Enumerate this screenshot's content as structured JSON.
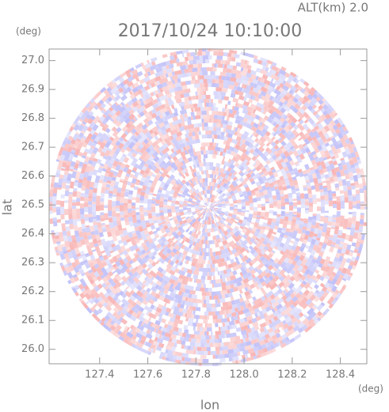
{
  "chart_data": {
    "type": "radar-field",
    "title": "2017/10/24 10:10:00",
    "subtitle": "ALT(km) 2.0",
    "x_label": "lon",
    "y_label": "lat",
    "x_unit": "(deg)",
    "y_unit": "(deg)",
    "xlim": [
      127.19,
      128.51
    ],
    "ylim": [
      25.95,
      27.04
    ],
    "xticks": [
      {
        "value": 127.4,
        "label": "127.4"
      },
      {
        "value": 127.6,
        "label": "127.6"
      },
      {
        "value": 127.8,
        "label": "127.8"
      },
      {
        "value": 128.0,
        "label": "128.0"
      },
      {
        "value": 128.2,
        "label": "128.2"
      },
      {
        "value": 128.4,
        "label": "128.4"
      }
    ],
    "yticks": [
      {
        "value": 26.0,
        "label": "26.0"
      },
      {
        "value": 26.1,
        "label": "26.1"
      },
      {
        "value": 26.2,
        "label": "26.2"
      },
      {
        "value": 26.3,
        "label": "26.3"
      },
      {
        "value": 26.4,
        "label": "26.4"
      },
      {
        "value": 26.5,
        "label": "26.5"
      },
      {
        "value": 26.6,
        "label": "26.6"
      },
      {
        "value": 26.7,
        "label": "26.7"
      },
      {
        "value": 26.8,
        "label": "26.8"
      },
      {
        "value": 26.9,
        "label": "26.9"
      },
      {
        "value": 27.0,
        "label": "27.0"
      }
    ]
  }
}
